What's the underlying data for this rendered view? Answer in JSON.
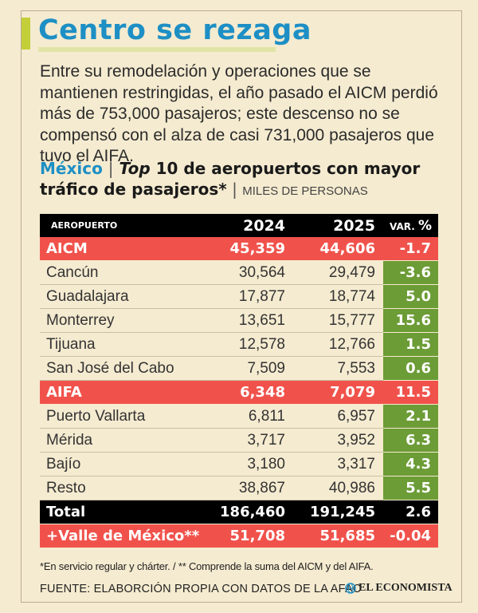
{
  "headline": "Centro se rezaga",
  "intro": "Entre su remodelación y operaciones que se mantienen restringidas, el año pasado el AICM perdió más de 753,000 pasajeros; este descenso no se compensó con el alza de casi 731,000 pasajeros que tuvo el AIFA.",
  "subtitle": {
    "country": "México",
    "separator": "|",
    "top": "Top",
    "title": " 10 de aeropuertos con mayor tráfico de pasajeros*",
    "units_separator": " | ",
    "units": "MILES DE PERSONAS"
  },
  "table": {
    "headers": {
      "airport": "AEROPUERTO",
      "y2024": "2024",
      "y2025": "2025",
      "var": "VAR.",
      "var_pct": "%"
    },
    "rows": [
      {
        "name": "AICM",
        "y2024": "45,359",
        "y2025": "44,606",
        "var": "-1.7"
      },
      {
        "name": "Cancún",
        "y2024": "30,564",
        "y2025": "29,479",
        "var": "-3.6"
      },
      {
        "name": "Guadalajara",
        "y2024": "17,877",
        "y2025": "18,774",
        "var": "5.0"
      },
      {
        "name": "Monterrey",
        "y2024": "13,651",
        "y2025": "15,777",
        "var": "15.6"
      },
      {
        "name": "Tijuana",
        "y2024": "12,578",
        "y2025": "12,766",
        "var": "1.5"
      },
      {
        "name": "San José del Cabo",
        "y2024": "7,509",
        "y2025": "7,553",
        "var": "0.6"
      },
      {
        "name": "AIFA",
        "y2024": "6,348",
        "y2025": "7,079",
        "var": "11.5"
      },
      {
        "name": "Puerto Vallarta",
        "y2024": "6,811",
        "y2025": "6,957",
        "var": "2.1"
      },
      {
        "name": "Mérida",
        "y2024": "3,717",
        "y2025": "3,952",
        "var": "6.3"
      },
      {
        "name": "Bajío",
        "y2024": "3,180",
        "y2025": "3,317",
        "var": "4.3"
      },
      {
        "name": "Resto",
        "y2024": "38,867",
        "y2025": "40,986",
        "var": "5.5"
      },
      {
        "name": "Total",
        "y2024": "186,460",
        "y2025": "191,245",
        "var": "2.6"
      },
      {
        "name": "+Valle de México**",
        "y2024": "51,708",
        "y2025": "51,685",
        "var": "-0.04"
      }
    ]
  },
  "footnote": "*En servicio regular y chárter. / ** Comprende la suma del AICM y del AIFA.",
  "source": "FUENTE: ELABORCIÓN PROPIA CON DATOS DE LA AFAC",
  "brand": "EL ECONOMISTA",
  "colors": {
    "background": "#f5ebd0",
    "headline": "#1d8fc5",
    "accent": "#c3cf38",
    "highlight_red": "#f0524b",
    "positive_green": "#6c9c36",
    "black": "#000000"
  }
}
